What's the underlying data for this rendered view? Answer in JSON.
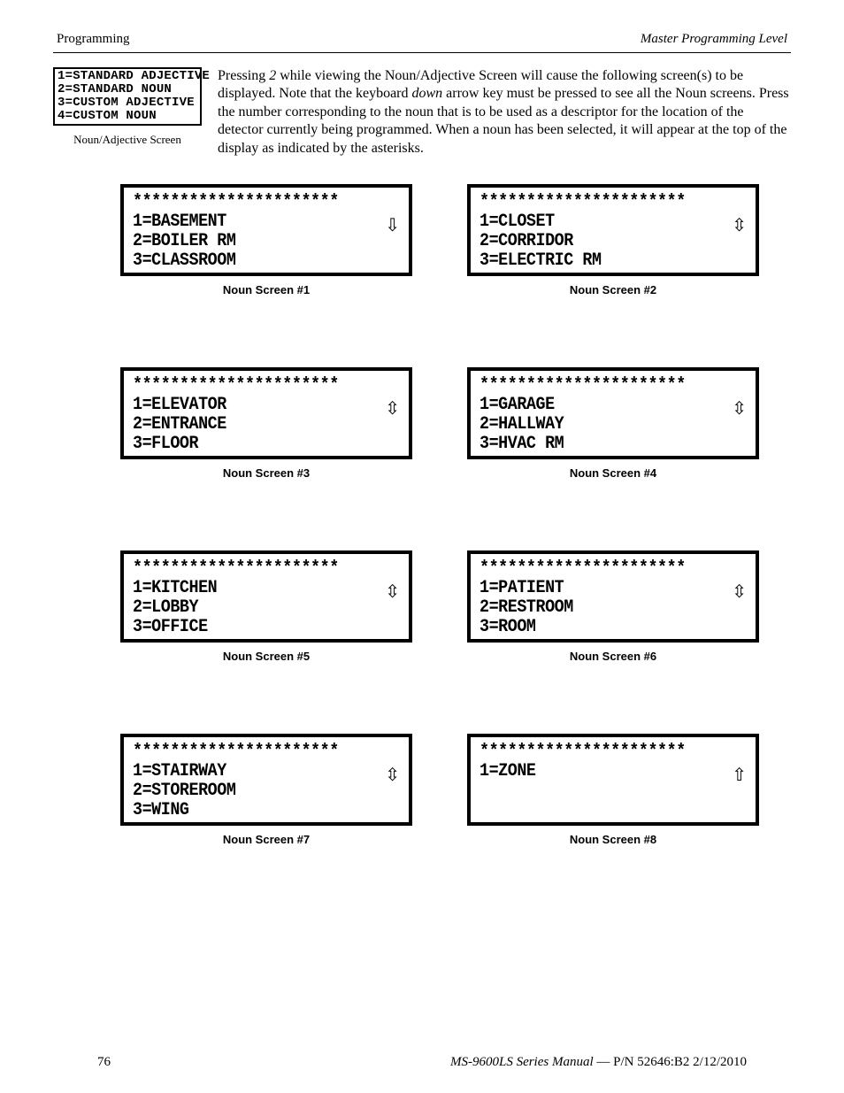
{
  "header": {
    "left": "Programming",
    "right": "Master Programming Level"
  },
  "noun_adj_screen": {
    "lines": [
      "1=STANDARD ADJECTIVE",
      "2=STANDARD NOUN",
      "3=CUSTOM ADJECTIVE",
      "4=CUSTOM NOUN"
    ],
    "label": "Noun/Adjective Screen"
  },
  "intro": {
    "pre": "Pressing ",
    "key": "2",
    "mid1": " while viewing the Noun/Adjective Screen will cause the following screen(s) to be displayed.  Note that the keyboard ",
    "down": "down",
    "mid2": " arrow key must be pressed to see all the Noun screens.  Press the number corresponding to the noun that is to be used as a descriptor for the location of the detector currently being programmed.  When a noun has been selected, it will appear at the top of the display as indicated by the asterisks."
  },
  "asterisks": "**********************",
  "screens": [
    {
      "lines": [
        "1=BASEMENT",
        "2=BOILER RM",
        "3=CLASSROOM"
      ],
      "scroll": "down",
      "label": "Noun Screen #1"
    },
    {
      "lines": [
        "1=CLOSET",
        "2=CORRIDOR",
        "3=ELECTRIC RM"
      ],
      "scroll": "updown",
      "label": "Noun Screen #2"
    },
    {
      "lines": [
        "1=ELEVATOR",
        "2=ENTRANCE",
        "3=FLOOR"
      ],
      "scroll": "updown",
      "label": "Noun Screen #3"
    },
    {
      "lines": [
        "1=GARAGE",
        "2=HALLWAY",
        "3=HVAC RM"
      ],
      "scroll": "updown",
      "label": "Noun Screen #4"
    },
    {
      "lines": [
        "1=KITCHEN",
        "2=LOBBY",
        "3=OFFICE"
      ],
      "scroll": "updown",
      "label": "Noun Screen #5"
    },
    {
      "lines": [
        "1=PATIENT",
        "2=RESTROOM",
        "3=ROOM"
      ],
      "scroll": "updown",
      "label": "Noun Screen #6"
    },
    {
      "lines": [
        "1=STAIRWAY",
        "2=STOREROOM",
        "3=WING"
      ],
      "scroll": "updown",
      "label": "Noun Screen #7"
    },
    {
      "lines": [
        "1=ZONE",
        "",
        ""
      ],
      "scroll": "up",
      "label": "Noun Screen #8"
    }
  ],
  "footer": {
    "page": "76",
    "manual": "MS-9600LS Series Manual",
    "rest": " — P/N 52646:B2  2/12/2010"
  },
  "arrows": {
    "up": "⇧",
    "down": "⇩",
    "updown": "⇳"
  }
}
